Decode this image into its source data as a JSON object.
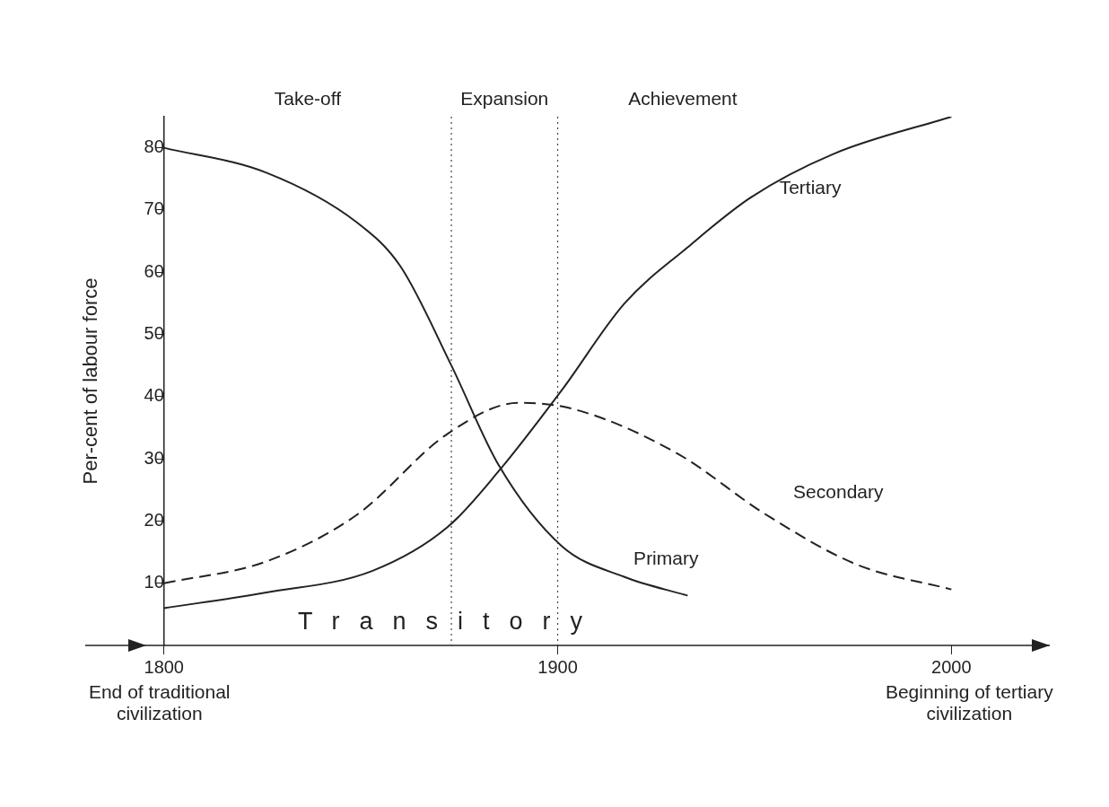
{
  "chart_data": {
    "type": "line",
    "ylabel": "Per-cent of labour force",
    "xlim": [
      1780,
      2025
    ],
    "xticks": [
      1800,
      1900,
      2000
    ],
    "ylim": [
      0,
      85
    ],
    "yticks": [
      10,
      20,
      30,
      40,
      50,
      60,
      70,
      80
    ],
    "series": [
      {
        "name": "Primary",
        "color": "#222222",
        "line_style": "solid",
        "x": [
          1800,
          1826,
          1849,
          1860,
          1873,
          1885,
          1901,
          1917,
          1933
        ],
        "values": [
          80,
          76,
          68,
          61,
          45,
          29,
          16,
          11,
          8
        ]
      },
      {
        "name": "Secondary",
        "color": "#222222",
        "line_style": "dashed",
        "x": [
          1800,
          1826,
          1849,
          1872,
          1890,
          1904,
          1930,
          1953,
          1976,
          2000
        ],
        "values": [
          10,
          13.5,
          21,
          34,
          39,
          38,
          31,
          21,
          13,
          9
        ]
      },
      {
        "name": "Tertiary",
        "color": "#222222",
        "line_style": "solid",
        "x": [
          1800,
          1826,
          1853,
          1872,
          1885,
          1901,
          1917,
          1933,
          1949,
          1970,
          2000
        ],
        "values": [
          6,
          8.5,
          12,
          19,
          28,
          41,
          55,
          64,
          72,
          79,
          85
        ]
      }
    ],
    "ref_lines": [
      {
        "axis": "x",
        "value": 1873,
        "line_style": "dotted"
      },
      {
        "axis": "x",
        "value": 1900,
        "line_style": "dotted"
      }
    ],
    "annotations": [
      "Take-off",
      "Expansion",
      "Achievement",
      "Transitory",
      "End of traditional civilization",
      "Beginning of tertiary civilization"
    ],
    "grid": false,
    "legend": false,
    "marker": "none"
  }
}
